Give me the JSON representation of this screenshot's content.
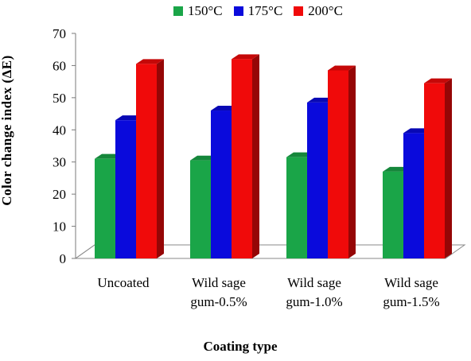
{
  "chart_data": {
    "type": "bar",
    "xlabel": "Coating type",
    "ylabel": "Color change index (ΔE)",
    "ylim": [
      0,
      70
    ],
    "yticks": [
      0,
      10,
      20,
      30,
      40,
      50,
      60,
      70
    ],
    "legend_position": "top",
    "categories": [
      [
        "Uncoated"
      ],
      [
        "Wild sage",
        "gum-0.5%"
      ],
      [
        "Wild sage",
        "gum-1.0%"
      ],
      [
        "Wild sage",
        "gum-1.5%"
      ]
    ],
    "series": [
      {
        "name": "150°C",
        "color": "#1aa548",
        "values": [
          31,
          30.5,
          31.5,
          27
        ]
      },
      {
        "name": "175°C",
        "color": "#0a0adc",
        "values": [
          43,
          46,
          48.5,
          39
        ]
      },
      {
        "name": "200°C",
        "color": "#f00a0a",
        "values": [
          60.5,
          62,
          58.5,
          54.5
        ]
      }
    ]
  }
}
